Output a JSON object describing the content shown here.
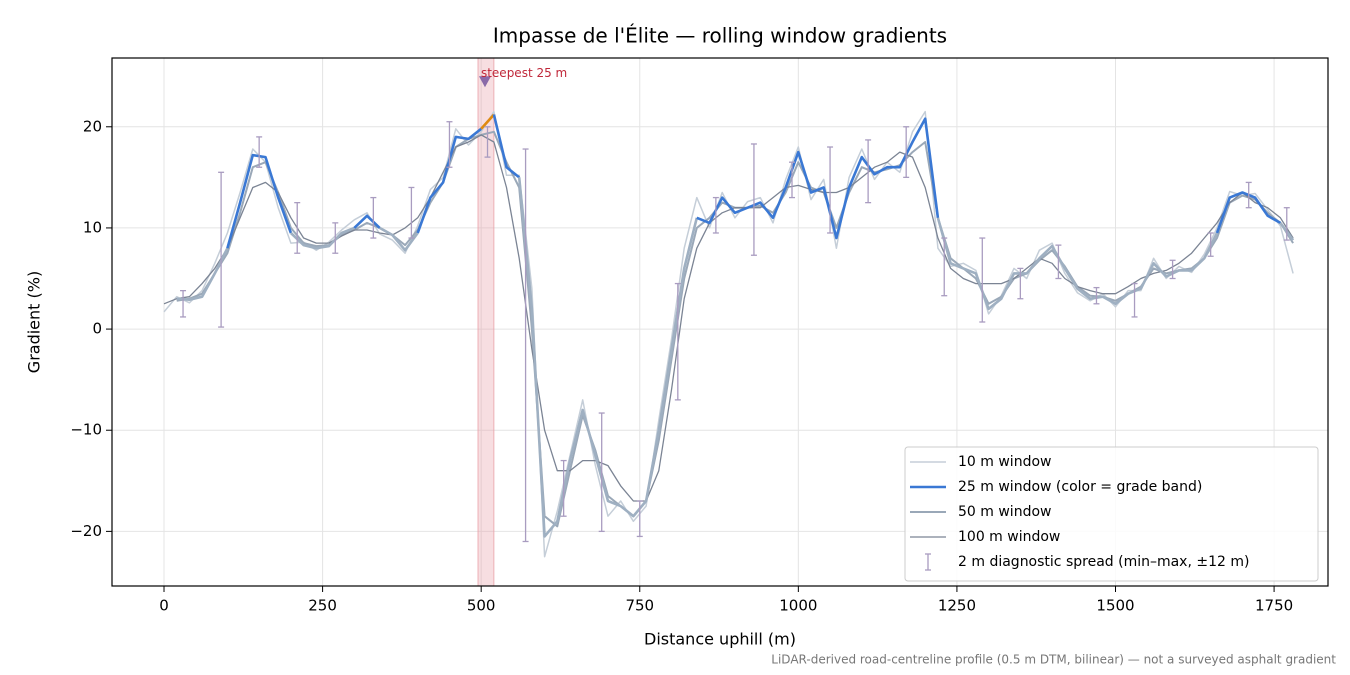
{
  "chart_data": {
    "type": "line",
    "title": "Impasse de l'Élite — rolling window gradients",
    "xlabel": "Distance uphill (m)",
    "ylabel": "Gradient (%)",
    "footnote": "LiDAR-derived road-centreline profile (0.5 m DTM, bilinear) — not a surveyed asphalt gradient",
    "xlim": [
      -82,
      1835
    ],
    "ylim": [
      -25.4,
      26.8
    ],
    "xticks": [
      0,
      250,
      500,
      750,
      1000,
      1250,
      1500,
      1750
    ],
    "yticks": [
      {
        "value": -20,
        "label": "−20"
      },
      {
        "value": -10,
        "label": "−10"
      },
      0,
      10,
      20
    ],
    "grid": true,
    "legend": "lower right",
    "x": [
      0,
      20,
      40,
      60,
      80,
      100,
      120,
      140,
      160,
      180,
      200,
      220,
      240,
      260,
      280,
      300,
      320,
      340,
      360,
      380,
      400,
      420,
      440,
      460,
      480,
      500,
      520,
      540,
      560,
      580,
      600,
      620,
      640,
      660,
      680,
      700,
      720,
      740,
      760,
      780,
      800,
      820,
      840,
      860,
      880,
      900,
      920,
      940,
      960,
      980,
      1000,
      1020,
      1040,
      1060,
      1080,
      1100,
      1120,
      1140,
      1160,
      1180,
      1200,
      1220,
      1240,
      1260,
      1280,
      1300,
      1320,
      1340,
      1360,
      1380,
      1400,
      1420,
      1440,
      1460,
      1480,
      1500,
      1520,
      1540,
      1560,
      1580,
      1600,
      1620,
      1640,
      1660,
      1680,
      1700,
      1720,
      1740,
      1760,
      1780
    ],
    "series": [
      {
        "name": "10 m window",
        "color": "#c5ced8",
        "width": 1.5,
        "values": [
          1.7,
          3.2,
          2.6,
          3.8,
          6.5,
          9.5,
          13.5,
          17.8,
          16.5,
          12,
          8.5,
          8.6,
          7.8,
          8.6,
          9.8,
          10.8,
          11.5,
          9.4,
          8.8,
          7.5,
          10.2,
          13.8,
          15,
          19.8,
          18.2,
          19.5,
          21.5,
          15.2,
          15.2,
          4,
          -22.5,
          -18,
          -12.5,
          -7,
          -13.5,
          -18.5,
          -17,
          -19,
          -17.5,
          -9,
          -1,
          8,
          13,
          10,
          13.5,
          11,
          12.6,
          13,
          10.5,
          14.8,
          18,
          12.8,
          14.8,
          8,
          15,
          17.8,
          14.8,
          16.5,
          15.5,
          19.5,
          21.5,
          8,
          6.2,
          6.5,
          5.8,
          1.5,
          3.3,
          6,
          5,
          7.8,
          8.5,
          5.5,
          3.6,
          2.8,
          3.5,
          2.2,
          3.8,
          3.8,
          7,
          5,
          6.2,
          5.6,
          7.4,
          10,
          13.6,
          13.2,
          13.4,
          11.8,
          10.2,
          5.5
        ]
      },
      {
        "name": "50 m window",
        "color": "#9aa8b8",
        "width": 2,
        "values": [
          null,
          2.8,
          3.0,
          3.5,
          5.5,
          7.5,
          11.5,
          16,
          16.5,
          13.5,
          10,
          8.5,
          8.2,
          8.3,
          9.3,
          9.8,
          10.5,
          10,
          9.3,
          8.3,
          9.8,
          12.5,
          14.5,
          18,
          18.8,
          19.2,
          19.5,
          16.5,
          14,
          0,
          -18.5,
          -19.5,
          -14,
          -8.5,
          -12,
          -16.5,
          -17.5,
          -18.5,
          -17,
          -11,
          -3,
          5,
          10,
          11,
          12.5,
          12,
          12,
          12.2,
          11.5,
          13.5,
          16.5,
          14,
          13.5,
          10,
          13.5,
          16,
          15.5,
          15.8,
          16.2,
          17.5,
          18.5,
          11,
          7,
          6,
          5,
          2.5,
          3.2,
          5,
          5.5,
          6.8,
          7.8,
          6.2,
          4.2,
          3.3,
          3.2,
          2.8,
          3.5,
          4.2,
          6,
          5.5,
          5.8,
          6,
          7,
          9,
          12.5,
          13.2,
          12.8,
          11.5,
          10.5,
          8.5
        ]
      },
      {
        "name": "100 m window",
        "color": "#7b8494",
        "width": 1.3,
        "values": [
          2.5,
          3,
          3.2,
          4.5,
          6,
          8,
          11,
          14,
          14.5,
          13.5,
          11,
          9,
          8.5,
          8.5,
          9.2,
          9.8,
          9.8,
          9.5,
          9.3,
          10,
          11,
          13,
          15.5,
          18,
          18.5,
          19.2,
          18.5,
          14,
          7,
          -2,
          -10,
          -14,
          -14,
          -13,
          -13,
          -13.5,
          -15.5,
          -17,
          -17,
          -14,
          -6,
          3,
          8,
          10.5,
          11.5,
          12,
          12,
          12,
          13,
          14,
          14.2,
          13.8,
          13.5,
          13.5,
          14,
          15,
          16,
          16.5,
          17.5,
          17,
          14,
          9,
          6,
          5,
          4.5,
          4.5,
          4.5,
          5,
          6,
          7,
          6.5,
          5,
          4.2,
          3.8,
          3.5,
          3.5,
          4.2,
          5,
          5.5,
          5.8,
          6.5,
          7.5,
          9,
          10.5,
          12.5,
          13.5,
          12.5,
          12,
          11,
          9
        ]
      },
      {
        "name": "25 m window (color = grade band)",
        "color": "#3a78d4",
        "width": 2.6,
        "band_limits": [
          10,
          20
        ],
        "band_colors": [
          "#9fb0c2",
          "#3a78d4",
          "#e08a10"
        ],
        "values": [
          null,
          3.0,
          2.9,
          3.2,
          5.5,
          8.0,
          12.5,
          17.2,
          17.0,
          13,
          9.5,
          8.3,
          8.0,
          8.2,
          9.5,
          10,
          11.2,
          10,
          9.3,
          7.8,
          9.5,
          13,
          14.5,
          19,
          18.8,
          19.8,
          21.2,
          16,
          15,
          2,
          -20.5,
          -19,
          -13,
          -8,
          -12.5,
          -17,
          -17.5,
          -18.5,
          -17,
          -10,
          -2,
          6,
          11,
          10.5,
          13,
          11.5,
          12,
          12.5,
          11,
          14,
          17.5,
          13.5,
          14,
          9,
          14,
          17,
          15.3,
          16,
          16,
          18.5,
          20.8,
          11,
          6.5,
          6,
          5.5,
          2,
          3,
          5.5,
          5.5,
          7,
          8.2,
          6,
          4,
          3,
          3.2,
          2.5,
          3.5,
          4,
          6.5,
          5.2,
          5.8,
          5.8,
          7,
          9.5,
          13,
          13.5,
          13,
          11.2,
          10.5,
          8.8
        ]
      }
    ],
    "errorbars": {
      "name": "2 m diagnostic spread (min–max, ±12 m)",
      "color": "#a99cc0",
      "x": [
        30,
        90,
        150,
        210,
        270,
        330,
        390,
        450,
        510,
        570,
        630,
        690,
        750,
        810,
        870,
        930,
        990,
        1050,
        1110,
        1170,
        1230,
        1290,
        1350,
        1410,
        1470,
        1530,
        1590,
        1650,
        1710,
        1770
      ],
      "low": [
        1.2,
        0.2,
        16,
        7.5,
        7.5,
        9,
        9,
        16,
        17,
        -21,
        -18.5,
        -20,
        -20.5,
        -7,
        9.5,
        7.3,
        13,
        9.5,
        12.5,
        15,
        3.3,
        0.7,
        3,
        5,
        2.5,
        1.2,
        5,
        7.2,
        12,
        8.8
      ],
      "high": [
        3.8,
        15.5,
        19,
        12.5,
        10.5,
        13,
        14,
        20.5,
        20,
        17.8,
        -13,
        -8.3,
        -17,
        4.5,
        13,
        18.3,
        16.5,
        18,
        18.7,
        20,
        9,
        9,
        6,
        8.3,
        4.1,
        4.5,
        6.8,
        9.5,
        14.5,
        12
      ]
    },
    "span": {
      "x": [
        495,
        520
      ],
      "color": "#e8a0a8"
    },
    "annotation": {
      "text": "steepest 25 m",
      "x": 506,
      "y": 24.5,
      "color": "#c0283a",
      "marker_color": "#8a6aa8"
    }
  }
}
